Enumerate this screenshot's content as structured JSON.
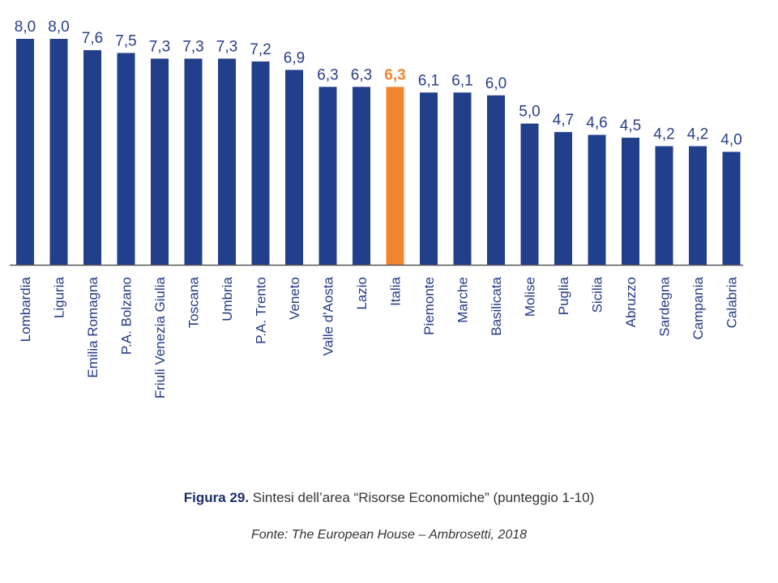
{
  "colors": {
    "bar": "#223f8c",
    "highlight": "#f28630",
    "label": "#2a3f86",
    "axis": "#555555"
  },
  "chart_data": {
    "type": "bar",
    "categories": [
      "Lombardia",
      "Liguria",
      "Emilia Romagna",
      "P.A. Bolzano",
      "Friuli Venezia Giulia",
      "Toscana",
      "Umbria",
      "P.A. Trento",
      "Veneto",
      "Valle d'Aosta",
      "Lazio",
      "Italia",
      "Piemonte",
      "Marche",
      "Basilicata",
      "Molise",
      "Puglia",
      "Sicilia",
      "Abruzzo",
      "Sardegna",
      "Campania",
      "Calabria"
    ],
    "values": [
      8.0,
      8.0,
      7.6,
      7.5,
      7.3,
      7.3,
      7.3,
      7.2,
      6.9,
      6.3,
      6.3,
      6.3,
      6.1,
      6.1,
      6.0,
      5.0,
      4.7,
      4.6,
      4.5,
      4.2,
      4.2,
      4.0
    ],
    "value_labels": [
      "8,0",
      "8,0",
      "7,6",
      "7,5",
      "7,3",
      "7,3",
      "7,3",
      "7,2",
      "6,9",
      "6,3",
      "6,3",
      "6,3",
      "6,1",
      "6,1",
      "6,0",
      "5,0",
      "4,7",
      "4,6",
      "4,5",
      "4,2",
      "4,2",
      "4,0"
    ],
    "highlight_category": "Italia",
    "ylim": [
      0,
      8.0
    ],
    "grid": false,
    "legend": "none"
  },
  "caption": {
    "figure_label": "Figura 29.",
    "figure_text": " Sintesi dell’area “Risorse Economiche” (punteggio 1-10)",
    "source": "Fonte: The European House – Ambrosetti, 2018"
  }
}
